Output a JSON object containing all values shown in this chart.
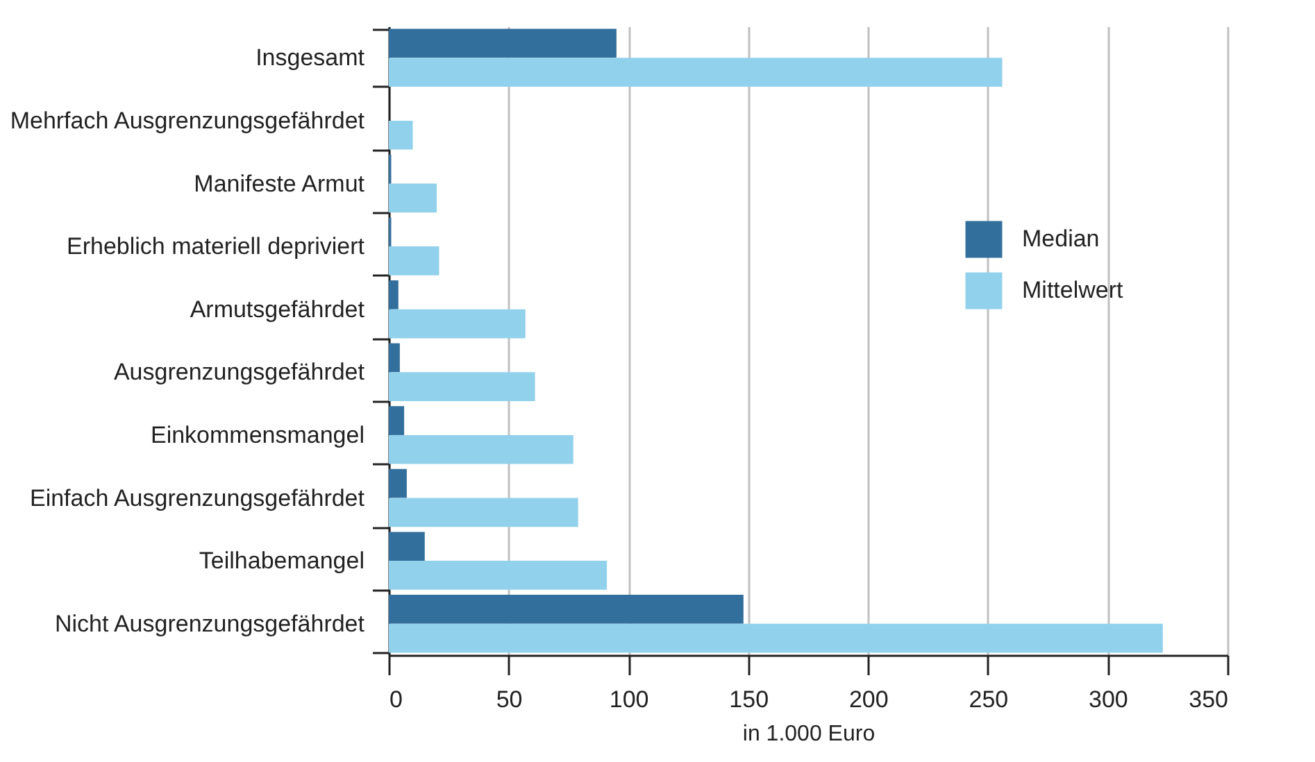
{
  "chart_data": {
    "type": "bar",
    "orientation": "horizontal",
    "xlabel": "in 1.000 Euro",
    "categories": [
      "Insgesamt",
      "Mehrfach Ausgrenzungsgefährdet",
      "Manifeste Armut",
      "Erheblich materiell depriviert",
      "Armutsgefährdet",
      "Ausgrenzungsgefährdet",
      "Einkommensmangel",
      "Einfach Ausgrenzungsgefährdet",
      "Teilhabemangel",
      "Nicht Ausgrenzungsgefährdet"
    ],
    "series": [
      {
        "name": "Median",
        "color": "#336f9c",
        "values": [
          95,
          0,
          1,
          1,
          4,
          4.6,
          6.4,
          7.5,
          15,
          148
        ]
      },
      {
        "name": "Mittelwert",
        "color": "#92d1ec",
        "values": [
          256,
          10,
          20,
          21,
          57,
          61,
          77,
          79,
          91,
          323
        ]
      }
    ],
    "xlim": [
      0,
      350
    ],
    "xticks": [
      0,
      50,
      100,
      150,
      200,
      250,
      300,
      350
    ],
    "grid": "x",
    "legend": "right"
  }
}
